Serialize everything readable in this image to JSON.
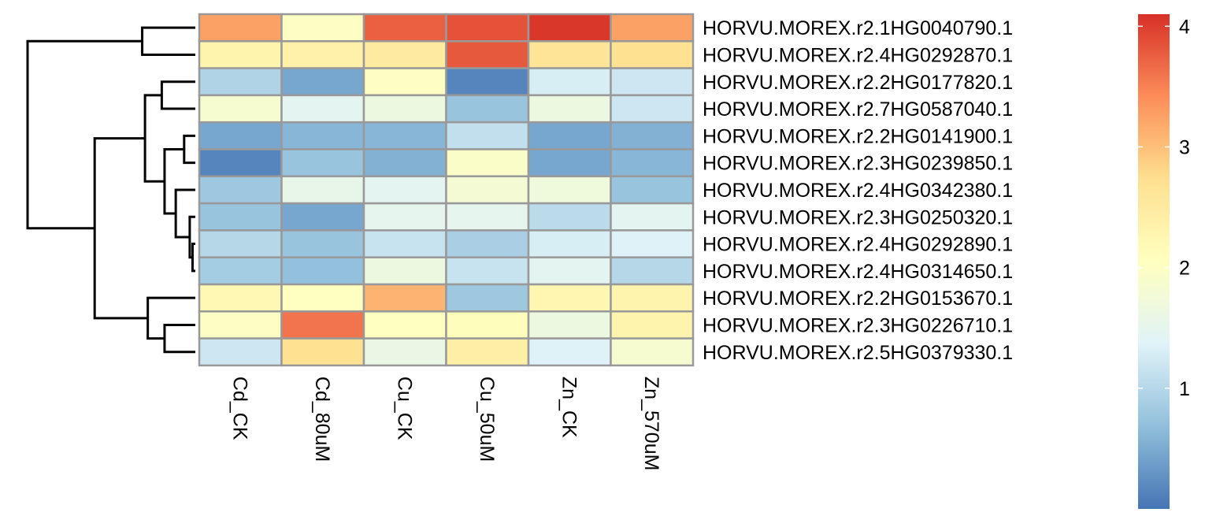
{
  "chart_data": {
    "type": "heatmap",
    "title": "",
    "columns": [
      "Cd_CK",
      "Cd_80uM",
      "Cu_CK",
      "Cu_50uM",
      "Zn_CK",
      "Zn_570uM"
    ],
    "rows": [
      "HORVU.MOREX.r2.1HG0040790.1",
      "HORVU.MOREX.r2.4HG0292870.1",
      "HORVU.MOREX.r2.2HG0177820.1",
      "HORVU.MOREX.r2.7HG0587040.1",
      "HORVU.MOREX.r2.2HG0141900.1",
      "HORVU.MOREX.r2.3HG0239850.1",
      "HORVU.MOREX.r2.4HG0342380.1",
      "HORVU.MOREX.r2.3HG0250320.1",
      "HORVU.MOREX.r2.4HG0292890.1",
      "HORVU.MOREX.r2.4HG0314650.1",
      "HORVU.MOREX.r2.2HG0153670.1",
      "HORVU.MOREX.r2.3HG0226710.1",
      "HORVU.MOREX.r2.5HG0379330.1"
    ],
    "values": [
      [
        3.25,
        2.0,
        3.75,
        3.85,
        4.05,
        3.25
      ],
      [
        2.3,
        2.35,
        2.5,
        3.8,
        2.65,
        2.7
      ],
      [
        0.95,
        0.45,
        2.0,
        0.15,
        1.3,
        1.2
      ],
      [
        1.85,
        1.45,
        1.65,
        0.75,
        1.65,
        1.2
      ],
      [
        0.45,
        0.6,
        0.6,
        1.1,
        0.45,
        0.55
      ],
      [
        0.15,
        0.75,
        0.55,
        1.95,
        0.45,
        0.6
      ],
      [
        0.8,
        1.55,
        1.45,
        1.8,
        1.7,
        0.75
      ],
      [
        0.75,
        0.45,
        1.5,
        1.5,
        1.05,
        1.45
      ],
      [
        1.0,
        0.75,
        1.15,
        0.9,
        1.3,
        1.35
      ],
      [
        0.85,
        0.7,
        1.65,
        1.15,
        1.45,
        1.0
      ],
      [
        2.2,
        2.05,
        3.1,
        0.8,
        2.25,
        2.3
      ],
      [
        2.0,
        3.6,
        2.05,
        2.1,
        1.65,
        2.3
      ],
      [
        1.2,
        2.7,
        1.6,
        2.4,
        1.35,
        1.85
      ]
    ],
    "colorscale": {
      "min": 0.0,
      "max": 4.1,
      "colors": [
        "#4575b4",
        "#91bfdb",
        "#e0f3f8",
        "#ffffbf",
        "#fee090",
        "#fc8d59",
        "#d73027"
      ],
      "ticks": [
        1,
        2,
        3,
        4
      ]
    },
    "row_dendrogram": {
      "merges": [
        [
          8,
          9,
          0.05
        ],
        [
          7,
          13,
          0.1
        ],
        [
          4,
          5,
          0.2
        ],
        [
          6,
          14,
          0.35
        ],
        [
          15,
          16,
          0.55
        ],
        [
          2,
          3,
          0.6
        ],
        [
          18,
          17,
          0.9
        ],
        [
          11,
          12,
          0.55
        ],
        [
          10,
          20,
          0.85
        ],
        [
          0,
          1,
          0.95
        ],
        [
          19,
          21,
          1.8
        ],
        [
          22,
          23,
          3.0
        ]
      ],
      "max_height": 3.0
    },
    "cell_border_color": "#999999",
    "legend": "right"
  }
}
